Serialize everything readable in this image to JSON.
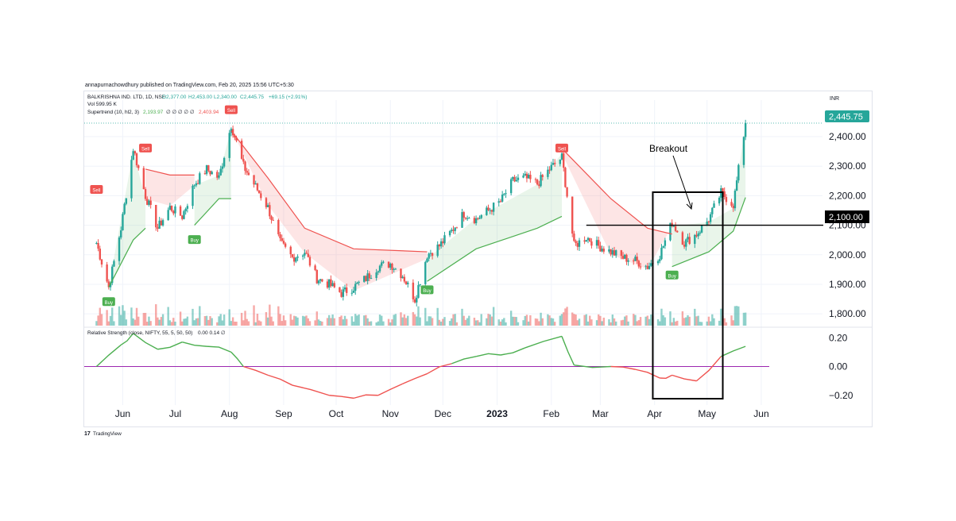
{
  "publisher_line": "annapurnachowdhury published on TradingView.com, Feb 20, 2025 15:56 UTC+5:30",
  "footer": {
    "logo_text": "TradingView"
  },
  "header": {
    "symbol": "BALKRISHNA IND. LTD, 1D, NSE",
    "open": "O2,377.00",
    "high": "H2,453.00",
    "low": "L2,340.00",
    "close": "C2,445.75",
    "change": "+69.15 (+2.91%)",
    "volume_line": "Vol 599.95 K",
    "supertrend_label": "Supertrend (10, hl2, 3)",
    "supertrend_up": "2,193.97",
    "supertrend_na": "∅ ∅ ∅ ∅ ∅",
    "supertrend_down": "2,403.94",
    "currency": "INR"
  },
  "annotations": {
    "breakout_text": "Breakout",
    "breakout_level_label": "2,100.00",
    "last_price_label": "2,445.75"
  },
  "signals": {
    "buy": "Buy",
    "sell": "Sell"
  },
  "colors": {
    "up": "#26a69a",
    "down": "#ef5350",
    "st_up_line": "#4caf50",
    "st_down_line": "#ef5350",
    "st_up_fill": "rgba(76,175,80,0.12)",
    "st_down_fill": "rgba(239,83,80,0.15)",
    "rs_up": "#4caf50",
    "rs_down": "#ef5350",
    "rs_zero": "#9c27b0"
  },
  "chart_data": [
    {
      "type": "candlestick",
      "title": "BALKRISHNA IND. LTD, 1D, NSE",
      "x_tick_labels": [
        "Jun",
        "Jul",
        "Aug",
        "Sep",
        "Oct",
        "Nov",
        "Dec",
        "2023",
        "Feb",
        "Mar",
        "Apr",
        "May",
        "Jun"
      ],
      "y_tick_labels": [
        "2,400.00",
        "2,300.00",
        "2,200.00",
        "2,100.00",
        "2,000.00",
        "1,900.00",
        "1,800.00"
      ],
      "ylim": [
        1760,
        2470
      ],
      "last_price": 2445.75,
      "breakout_level": 2100,
      "approx_close_path": [
        {
          "date": "2022-05-17",
          "close": 2040
        },
        {
          "date": "2022-05-24",
          "close": 1890
        },
        {
          "date": "2022-05-31",
          "close": 2090
        },
        {
          "date": "2022-06-07",
          "close": 2360
        },
        {
          "date": "2022-06-14",
          "close": 2200
        },
        {
          "date": "2022-06-21",
          "close": 2090
        },
        {
          "date": "2022-06-28",
          "close": 2160
        },
        {
          "date": "2022-07-05",
          "close": 2130
        },
        {
          "date": "2022-07-12",
          "close": 2240
        },
        {
          "date": "2022-07-19",
          "close": 2290
        },
        {
          "date": "2022-07-26",
          "close": 2260
        },
        {
          "date": "2022-08-02",
          "close": 2440
        },
        {
          "date": "2022-08-09",
          "close": 2300
        },
        {
          "date": "2022-08-16",
          "close": 2230
        },
        {
          "date": "2022-08-23",
          "close": 2160
        },
        {
          "date": "2022-08-30",
          "close": 2040
        },
        {
          "date": "2022-09-06",
          "close": 1990
        },
        {
          "date": "2022-09-13",
          "close": 2010
        },
        {
          "date": "2022-09-20",
          "close": 1920
        },
        {
          "date": "2022-09-27",
          "close": 1900
        },
        {
          "date": "2022-10-04",
          "close": 1870
        },
        {
          "date": "2022-10-11",
          "close": 1890
        },
        {
          "date": "2022-10-18",
          "close": 1920
        },
        {
          "date": "2022-10-25",
          "close": 1960
        },
        {
          "date": "2022-11-01",
          "close": 1970
        },
        {
          "date": "2022-11-08",
          "close": 1930
        },
        {
          "date": "2022-11-15",
          "close": 1850
        },
        {
          "date": "2022-11-22",
          "close": 2000
        },
        {
          "date": "2022-11-29",
          "close": 2030
        },
        {
          "date": "2022-12-06",
          "close": 2080
        },
        {
          "date": "2022-12-13",
          "close": 2140
        },
        {
          "date": "2022-12-20",
          "close": 2120
        },
        {
          "date": "2022-12-27",
          "close": 2150
        },
        {
          "date": "2023-01-03",
          "close": 2180
        },
        {
          "date": "2023-01-10",
          "close": 2250
        },
        {
          "date": "2023-01-17",
          "close": 2260
        },
        {
          "date": "2023-01-24",
          "close": 2240
        },
        {
          "date": "2023-01-31",
          "close": 2290
        },
        {
          "date": "2023-02-07",
          "close": 2330
        },
        {
          "date": "2023-02-14",
          "close": 2030
        },
        {
          "date": "2023-02-21",
          "close": 2060
        },
        {
          "date": "2023-02-28",
          "close": 2030
        },
        {
          "date": "2023-03-07",
          "close": 2010
        },
        {
          "date": "2023-03-14",
          "close": 1990
        },
        {
          "date": "2023-03-21",
          "close": 1980
        },
        {
          "date": "2023-03-28",
          "close": 1960
        },
        {
          "date": "2023-04-04",
          "close": 2000
        },
        {
          "date": "2023-04-11",
          "close": 2110
        },
        {
          "date": "2023-04-18",
          "close": 2040
        },
        {
          "date": "2023-04-25",
          "close": 2070
        },
        {
          "date": "2023-05-02",
          "close": 2120
        },
        {
          "date": "2023-05-09",
          "close": 2210
        },
        {
          "date": "2023-05-16",
          "close": 2170
        },
        {
          "date": "2023-05-23",
          "close": 2445.75
        }
      ],
      "supertrend_segments": [
        {
          "trend": "up",
          "points": [
            {
              "date": "2022-05-24",
              "value": 1890
            },
            {
              "date": "2022-06-07",
              "value": 2050
            },
            {
              "date": "2022-06-14",
              "value": 2090
            }
          ]
        },
        {
          "trend": "down",
          "points": [
            {
              "date": "2022-06-14",
              "value": 2290
            },
            {
              "date": "2022-06-28",
              "value": 2270
            },
            {
              "date": "2022-07-12",
              "value": 2270
            }
          ]
        },
        {
          "trend": "up",
          "points": [
            {
              "date": "2022-07-12",
              "value": 2100
            },
            {
              "date": "2022-07-26",
              "value": 2190
            },
            {
              "date": "2022-08-02",
              "value": 2190
            }
          ]
        },
        {
          "trend": "down",
          "points": [
            {
              "date": "2022-08-02",
              "value": 2420
            },
            {
              "date": "2022-08-23",
              "value": 2260
            },
            {
              "date": "2022-09-13",
              "value": 2090
            },
            {
              "date": "2022-10-11",
              "value": 2020
            },
            {
              "date": "2022-11-22",
              "value": 2010
            }
          ]
        },
        {
          "trend": "up",
          "points": [
            {
              "date": "2022-11-22",
              "value": 1910
            },
            {
              "date": "2022-12-20",
              "value": 2020
            },
            {
              "date": "2023-01-24",
              "value": 2090
            },
            {
              "date": "2023-02-07",
              "value": 2130
            }
          ]
        },
        {
          "trend": "down",
          "points": [
            {
              "date": "2023-02-07",
              "value": 2360
            },
            {
              "date": "2023-03-07",
              "value": 2190
            },
            {
              "date": "2023-03-28",
              "value": 2090
            },
            {
              "date": "2023-04-11",
              "value": 2070
            }
          ]
        },
        {
          "trend": "up",
          "points": [
            {
              "date": "2023-04-11",
              "value": 1960
            },
            {
              "date": "2023-05-02",
              "value": 2010
            },
            {
              "date": "2023-05-16",
              "value": 2080
            },
            {
              "date": "2023-05-23",
              "value": 2194
            }
          ]
        }
      ],
      "signals": [
        {
          "type": "Sell",
          "date": "2022-05-17",
          "price": 2220
        },
        {
          "type": "Buy",
          "date": "2022-05-24",
          "price": 1840
        },
        {
          "type": "Sell",
          "date": "2022-06-14",
          "price": 2360
        },
        {
          "type": "Buy",
          "date": "2022-07-12",
          "price": 2050
        },
        {
          "type": "Sell",
          "date": "2022-08-02",
          "price": 2490
        },
        {
          "type": "Buy",
          "date": "2022-11-22",
          "price": 1880
        },
        {
          "type": "Sell",
          "date": "2023-02-07",
          "price": 2360
        },
        {
          "type": "Buy",
          "date": "2023-04-11",
          "price": 1930
        }
      ],
      "volume": {
        "label": "Vol",
        "last": "599.95 K"
      }
    },
    {
      "type": "line",
      "title": "Relative Strength (close, NIFTY, 55, 5, 50, 50)",
      "legend_values": "0.00 0.14 ∅",
      "y_tick_labels": [
        "0.20",
        "0.00",
        "−0.20"
      ],
      "ylim": [
        -0.24,
        0.24
      ],
      "series": [
        {
          "name": "Relative Strength",
          "points": [
            {
              "date": "2022-05-17",
              "value": 0.0
            },
            {
              "date": "2022-05-31",
              "value": 0.15
            },
            {
              "date": "2022-06-07",
              "value": 0.23
            },
            {
              "date": "2022-06-21",
              "value": 0.12
            },
            {
              "date": "2022-07-05",
              "value": 0.17
            },
            {
              "date": "2022-07-19",
              "value": 0.14
            },
            {
              "date": "2022-08-02",
              "value": 0.1
            },
            {
              "date": "2022-08-09",
              "value": 0.0
            },
            {
              "date": "2022-08-23",
              "value": -0.06
            },
            {
              "date": "2022-09-06",
              "value": -0.13
            },
            {
              "date": "2022-09-27",
              "value": -0.2
            },
            {
              "date": "2022-10-11",
              "value": -0.22
            },
            {
              "date": "2022-10-25",
              "value": -0.2
            },
            {
              "date": "2022-11-08",
              "value": -0.12
            },
            {
              "date": "2022-11-22",
              "value": -0.05
            },
            {
              "date": "2022-12-06",
              "value": 0.02
            },
            {
              "date": "2022-12-20",
              "value": 0.07
            },
            {
              "date": "2023-01-03",
              "value": 0.08
            },
            {
              "date": "2023-01-17",
              "value": 0.13
            },
            {
              "date": "2023-02-07",
              "value": 0.21
            },
            {
              "date": "2023-02-14",
              "value": 0.01
            },
            {
              "date": "2023-03-07",
              "value": 0.0
            },
            {
              "date": "2023-03-21",
              "value": -0.02
            },
            {
              "date": "2023-04-04",
              "value": -0.08
            },
            {
              "date": "2023-04-11",
              "value": -0.06
            },
            {
              "date": "2023-04-25",
              "value": -0.1
            },
            {
              "date": "2023-05-09",
              "value": 0.07
            },
            {
              "date": "2023-05-23",
              "value": 0.14
            }
          ]
        }
      ]
    }
  ]
}
